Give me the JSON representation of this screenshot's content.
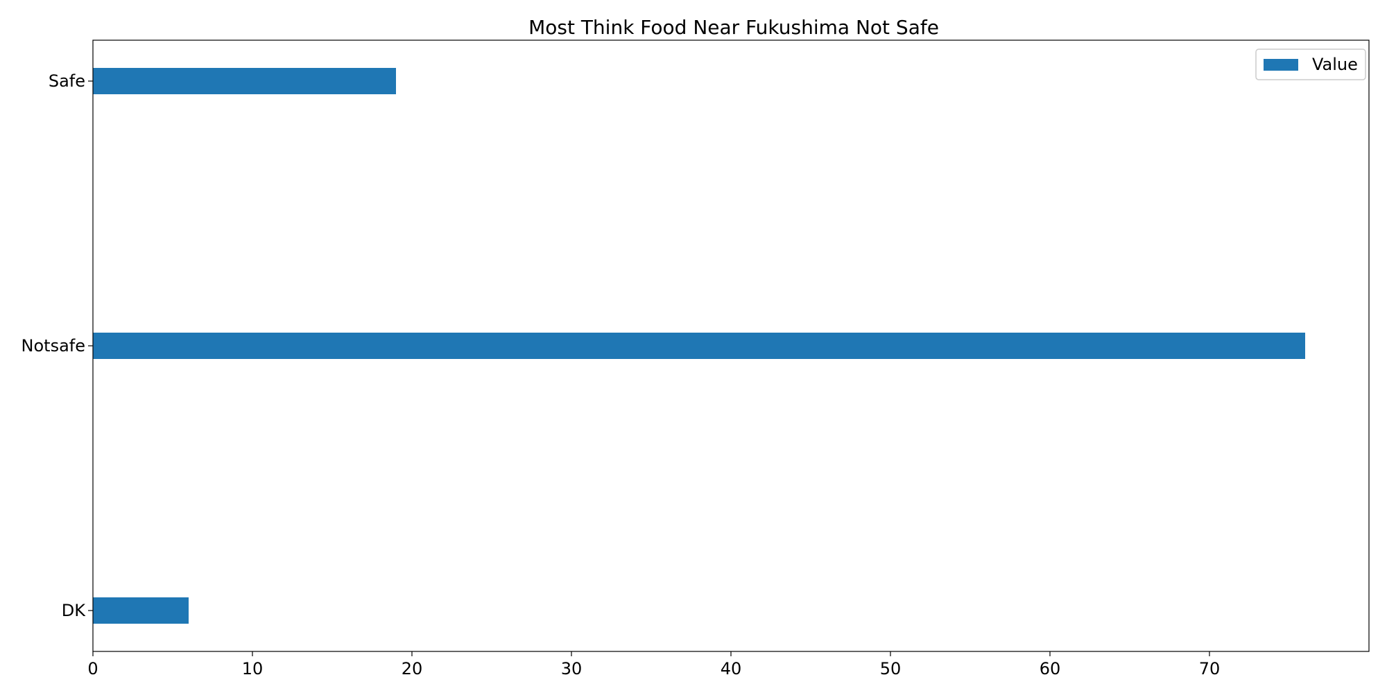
{
  "chart_data": {
    "type": "bar",
    "orientation": "horizontal",
    "title": "Most Think Food Near Fukushima Not Safe",
    "xlabel": "",
    "ylabel": "",
    "categories": [
      "Safe",
      "Notsafe",
      "DK"
    ],
    "series": [
      {
        "name": "Value",
        "values": [
          19,
          76,
          6
        ],
        "color": "#1f77b4"
      }
    ],
    "xlim": [
      0,
      80
    ],
    "x_ticks": [
      0,
      10,
      20,
      30,
      40,
      50,
      60,
      70
    ],
    "grid": false,
    "legend": "top-right"
  }
}
